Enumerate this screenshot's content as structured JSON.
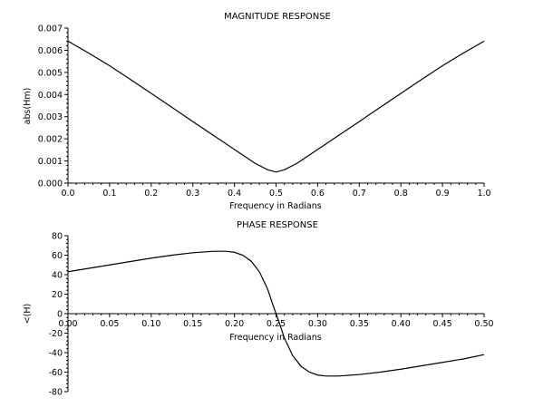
{
  "chart_data": [
    {
      "type": "line",
      "title": "MAGNITUDE RESPONSE",
      "xlabel": "Frequency in Radians",
      "ylabel": "abs(Hm)",
      "xlim": [
        0.0,
        1.0
      ],
      "ylim": [
        0.0,
        0.007
      ],
      "x_ticks": [
        "0.0",
        "0.1",
        "0.2",
        "0.3",
        "0.4",
        "0.5",
        "0.6",
        "0.7",
        "0.8",
        "0.9",
        "1.0"
      ],
      "y_ticks": [
        "0.000",
        "0.001",
        "0.002",
        "0.003",
        "0.004",
        "0.005",
        "0.006",
        "0.007"
      ],
      "grid": false,
      "series": [
        {
          "color": "#000000",
          "x": [
            0.0,
            0.05,
            0.1,
            0.15,
            0.2,
            0.25,
            0.3,
            0.35,
            0.4,
            0.45,
            0.48,
            0.5,
            0.52,
            0.55,
            0.6,
            0.65,
            0.7,
            0.75,
            0.8,
            0.85,
            0.9,
            0.95,
            1.0
          ],
          "values": [
            0.00641,
            0.00587,
            0.0053,
            0.00468,
            0.00405,
            0.00342,
            0.00278,
            0.00215,
            0.00152,
            0.00089,
            0.0006,
            0.0005,
            0.0006,
            0.00089,
            0.00152,
            0.00215,
            0.00278,
            0.00342,
            0.00405,
            0.00468,
            0.0053,
            0.00587,
            0.00641
          ]
        }
      ]
    },
    {
      "type": "line",
      "title": "PHASE RESPONSE",
      "xlabel": "Frequency in Radians",
      "ylabel": "<(H)",
      "xlim": [
        0.0,
        0.5
      ],
      "ylim": [
        -80,
        80
      ],
      "x_ticks": [
        "0.00",
        "0.05",
        "0.10",
        "0.15",
        "0.20",
        "0.25",
        "0.30",
        "0.35",
        "0.40",
        "0.45",
        "0.50"
      ],
      "y_ticks": [
        "-80",
        "-60",
        "-40",
        "-20",
        "0",
        "20",
        "40",
        "60",
        "80"
      ],
      "grid": false,
      "series": [
        {
          "color": "#000000",
          "x": [
            0.0,
            0.025,
            0.05,
            0.075,
            0.1,
            0.125,
            0.15,
            0.175,
            0.19,
            0.2,
            0.21,
            0.22,
            0.23,
            0.24,
            0.245,
            0.25,
            0.255,
            0.26,
            0.27,
            0.28,
            0.29,
            0.3,
            0.31,
            0.325,
            0.35,
            0.375,
            0.4,
            0.425,
            0.45,
            0.475,
            0.5
          ],
          "values": [
            43,
            46.5,
            50,
            53.5,
            57,
            60,
            62.5,
            64,
            64,
            63,
            60,
            54,
            43,
            25,
            12,
            0,
            -12,
            -25,
            -43,
            -54,
            -60,
            -63,
            -64,
            -64,
            -62.5,
            -60,
            -57,
            -53.5,
            -50,
            -46.5,
            -42
          ]
        }
      ]
    }
  ]
}
